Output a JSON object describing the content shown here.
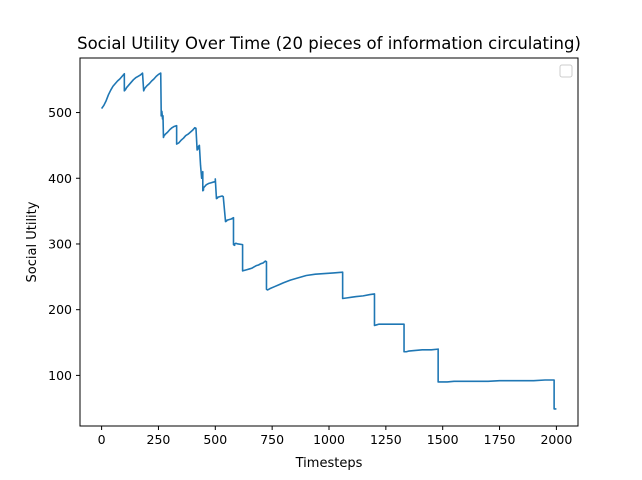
{
  "chart_data": {
    "type": "line",
    "title": "Social Utility Over Time (20 pieces of information circulating)",
    "xlabel": "Timesteps",
    "ylabel": "Social Utility",
    "xlim": [
      -95,
      2095
    ],
    "ylim": [
      23,
      583
    ],
    "xticks": [
      0,
      250,
      500,
      750,
      1000,
      1250,
      1500,
      1750,
      2000
    ],
    "yticks": [
      100,
      200,
      300,
      400,
      500
    ],
    "grid": false,
    "legend": {
      "placement": "top-right",
      "entries": []
    },
    "series": [
      {
        "color": "#1f77b4",
        "x": [
          0,
          10,
          20,
          30,
          40,
          50,
          60,
          70,
          80,
          90,
          100,
          100,
          105,
          110,
          120,
          130,
          140,
          150,
          160,
          170,
          180,
          185,
          185,
          190,
          200,
          210,
          220,
          230,
          240,
          250,
          260,
          262,
          262,
          265,
          268,
          270,
          272,
          275,
          278,
          280,
          290,
          300,
          310,
          320,
          330,
          330,
          340,
          350,
          360,
          370,
          380,
          390,
          400,
          410,
          415,
          420,
          425,
          425,
          430,
          435,
          440,
          445,
          445,
          448,
          448,
          452,
          455,
          460,
          470,
          480,
          490,
          500,
          500,
          505,
          510,
          510,
          520,
          530,
          535,
          545,
          550,
          550,
          560,
          570,
          580,
          580,
          585,
          585,
          590,
          600,
          620,
          620,
          630,
          640,
          650,
          660,
          670,
          680,
          690,
          700,
          710,
          720,
          725,
          725,
          730,
          740,
          760,
          780,
          800,
          830,
          860,
          900,
          940,
          980,
          1020,
          1060,
          1060,
          1080,
          1100,
          1120,
          1150,
          1180,
          1200,
          1200,
          1210,
          1220,
          1250,
          1280,
          1310,
          1330,
          1330,
          1340,
          1350,
          1380,
          1410,
          1450,
          1480,
          1480,
          1500,
          1520,
          1550,
          1560,
          1600,
          1650,
          1700,
          1750,
          1800,
          1850,
          1900,
          1950,
          1990,
          1990,
          2000
        ],
        "y": [
          506,
          511,
          518,
          527,
          534,
          540,
          544,
          548,
          551,
          555,
          559,
          533,
          535,
          538,
          542,
          546,
          550,
          553,
          555,
          557,
          560,
          533,
          533,
          537,
          541,
          544,
          548,
          551,
          555,
          558,
          560,
          503,
          495,
          502,
          490,
          495,
          462,
          465,
          466,
          467,
          470,
          474,
          477,
          479,
          480,
          452,
          454,
          458,
          461,
          465,
          467,
          470,
          473,
          477,
          476,
          443,
          445,
          448,
          450,
          420,
          400,
          410,
          381,
          382,
          385,
          387,
          388,
          390,
          392,
          393,
          394,
          395,
          399,
          369,
          370,
          371,
          372,
          373,
          372,
          334,
          335,
          336,
          337,
          338,
          340,
          299,
          298,
          300,
          301,
          300,
          299,
          259,
          260,
          261,
          262,
          263,
          265,
          267,
          268,
          270,
          271,
          274,
          273,
          231,
          230,
          232,
          235,
          238,
          241,
          245,
          248,
          252,
          254,
          255,
          256,
          257,
          217,
          218,
          219,
          220,
          221,
          223,
          224,
          176,
          177,
          178,
          178,
          178,
          178,
          178,
          136,
          136,
          137,
          138,
          139,
          139,
          140,
          90,
          90,
          90,
          91,
          91,
          91,
          91,
          91,
          92,
          92,
          92,
          92,
          93,
          93,
          49,
          49
        ]
      }
    ]
  }
}
